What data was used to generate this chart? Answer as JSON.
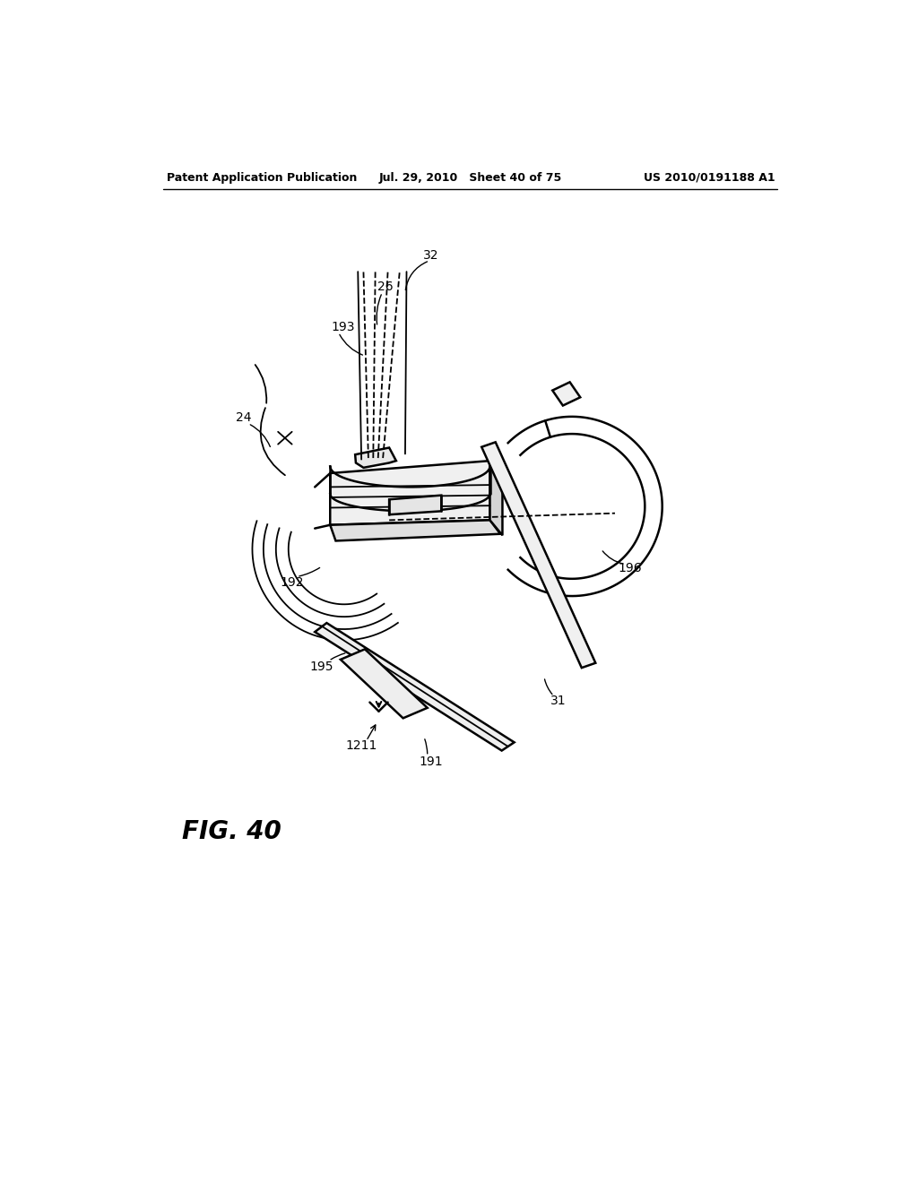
{
  "bg_color": "#ffffff",
  "line_color": "#000000",
  "header_left": "Patent Application Publication",
  "header_center": "Jul. 29, 2010   Sheet 40 of 75",
  "header_right": "US 2010/0191188 A1",
  "fig_label": "FIG. 40"
}
